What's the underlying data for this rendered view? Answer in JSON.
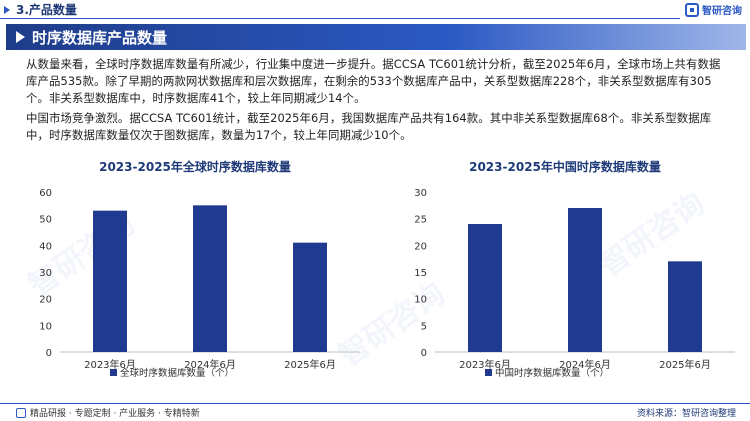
{
  "header": {
    "section_title": "3.产品数量",
    "brand_name": "智研咨询"
  },
  "banner": {
    "title": "时序数据库产品数量"
  },
  "paragraphs": [
    "从数量来看，全球时序数据库数量有所减少，行业集中度进一步提升。据CCSA TC601统计分析，截至2025年6月，全球市场上共有数据库产品535款。除了早期的两款网状数据库和层次数据库，在剩余的533个数据库产品中，关系型数据库228个，非关系型数据库有305个。非关系型数据库中，时序数据库41个，较上年同期减少14个。",
    "中国市场竞争激烈。据CCSA TC601统计，截至2025年6月，我国数据库产品共有164款。其中非关系型数据库68个。非关系型数据库中，时序数据库数量仅次于图数据库，数量为17个，较上年同期减少10个。"
  ],
  "colors": {
    "bar": "#1f3a8f",
    "accent": "#2c59c4",
    "grid": "#d9d9d9"
  },
  "chart_data": [
    {
      "type": "bar",
      "title": "2023-2025年全球时序数据库数量",
      "categories": [
        "2023年6月",
        "2024年6月",
        "2025年6月"
      ],
      "series": [
        {
          "name": "全球时序数据库数量（个）",
          "values": [
            53,
            55,
            41
          ]
        }
      ],
      "ylim": [
        0,
        60
      ],
      "yticks": [
        0,
        10,
        20,
        30,
        40,
        50,
        60
      ],
      "grid": false,
      "legend": "bottom"
    },
    {
      "type": "bar",
      "title": "2023-2025年中国时序数据库数量",
      "categories": [
        "2023年6月",
        "2024年6月",
        "2025年6月"
      ],
      "series": [
        {
          "name": "中国时序数据库数量（个）",
          "values": [
            24,
            27,
            17
          ]
        }
      ],
      "ylim": [
        0,
        30
      ],
      "yticks": [
        0,
        5,
        10,
        15,
        20,
        25,
        30
      ],
      "grid": false,
      "legend": "bottom"
    }
  ],
  "footer": {
    "left_text": "精品研报 · 专题定制 · 产业服务 · 专精特新",
    "right_text": "资料来源：智研咨询整理"
  },
  "watermark": "智研咨询"
}
